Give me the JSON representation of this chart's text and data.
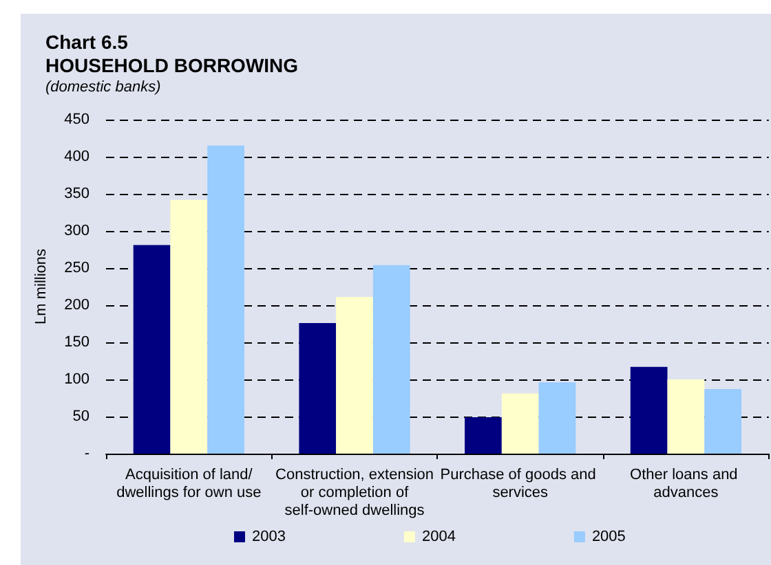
{
  "chart_data": {
    "type": "bar",
    "title": "Chart 6.5\nHOUSEHOLD BORROWING",
    "subtitle": "(domestic banks)",
    "ylabel": "Lm millions",
    "categories": [
      "Acquisition of land/dwellings for own use",
      "Construction, extension or completion of self-owned dwellings",
      "Purchase of goods and services",
      "Other loans and advances"
    ],
    "series": [
      {
        "name": "2003",
        "color": "#000080",
        "values": [
          281,
          176,
          49,
          117
        ]
      },
      {
        "name": "2004",
        "color": "#ffffcc",
        "values": [
          342,
          211,
          81,
          100
        ]
      },
      {
        "name": "2005",
        "color": "#99ccff",
        "values": [
          415,
          254,
          96,
          87
        ]
      }
    ],
    "ylim": [
      0,
      450
    ],
    "yticks": [
      {
        "value": 0,
        "label": "-"
      },
      50,
      100,
      150,
      200,
      250,
      300,
      350,
      400,
      450
    ],
    "grid": "y",
    "legend": "bottom"
  }
}
